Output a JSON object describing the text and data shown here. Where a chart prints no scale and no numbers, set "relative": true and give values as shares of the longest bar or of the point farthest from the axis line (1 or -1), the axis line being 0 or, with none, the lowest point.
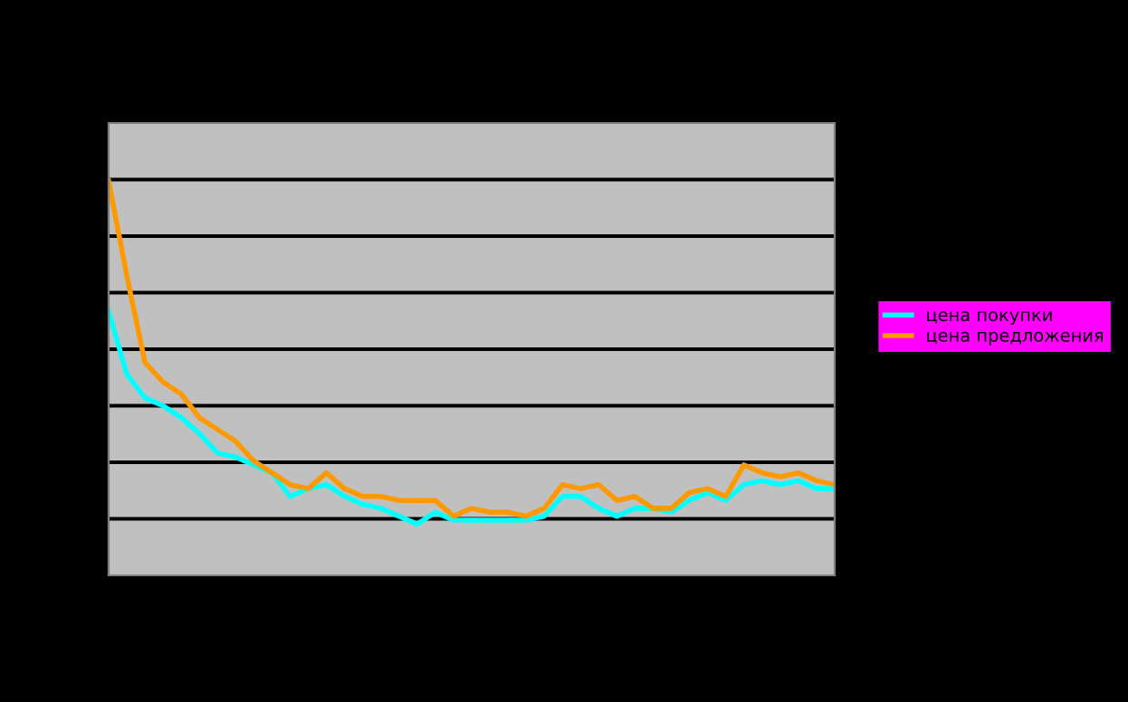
{
  "chart_data": {
    "type": "line",
    "relative": true,
    "grid": "y",
    "legend": "right",
    "marker": "none",
    "line_style": "solid",
    "categories": [
      null,
      null,
      null,
      null,
      null,
      null,
      null,
      null,
      null,
      null,
      null,
      null,
      null,
      null,
      null,
      null,
      null,
      null,
      null,
      null,
      null,
      null,
      null,
      null,
      null,
      null,
      null,
      null,
      null,
      null,
      null,
      null,
      null,
      null,
      null,
      null,
      null,
      null,
      null,
      null,
      null
    ],
    "series": [
      {
        "name": "цена покупки",
        "color": "#00ffff",
        "values": [
          0.67,
          0.51,
          0.45,
          0.43,
          0.4,
          0.36,
          0.31,
          0.3,
          0.28,
          0.26,
          0.2,
          0.22,
          0.23,
          0.2,
          0.18,
          0.17,
          0.15,
          0.13,
          0.16,
          0.14,
          0.14,
          0.14,
          0.14,
          0.14,
          0.15,
          0.2,
          0.2,
          0.17,
          0.15,
          0.17,
          0.17,
          0.16,
          0.19,
          0.21,
          0.19,
          0.23,
          0.24,
          0.23,
          0.24,
          0.22,
          0.22
        ]
      },
      {
        "name": "цена предложения",
        "color": "#ff9900",
        "values": [
          1.0,
          0.76,
          0.54,
          0.49,
          0.46,
          0.4,
          0.37,
          0.34,
          0.29,
          0.26,
          0.23,
          0.22,
          0.26,
          0.22,
          0.2,
          0.2,
          0.19,
          0.19,
          0.19,
          0.15,
          0.17,
          0.16,
          0.16,
          0.15,
          0.17,
          0.23,
          0.22,
          0.23,
          0.19,
          0.2,
          0.17,
          0.17,
          0.21,
          0.22,
          0.2,
          0.28,
          0.26,
          0.25,
          0.26,
          0.24,
          0.23
        ]
      }
    ]
  }
}
